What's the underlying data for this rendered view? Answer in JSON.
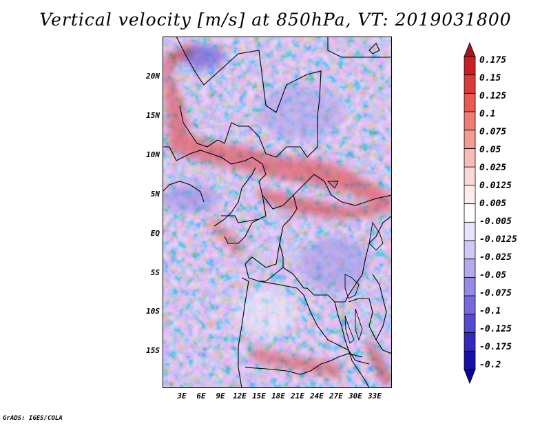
{
  "title": "Vertical velocity [m/s] at 850hPa, VT: 2019031800",
  "lat_labels": [
    "20N",
    "15N",
    "10N",
    "5N",
    "EQ",
    "5S",
    "10S",
    "15S"
  ],
  "lon_labels": [
    "3E",
    "6E",
    "9E",
    "12E",
    "15E",
    "18E",
    "21E",
    "24E",
    "27E",
    "30E",
    "33E"
  ],
  "colorbar": {
    "labels": [
      "0.175",
      "0.15",
      "0.125",
      "0.1",
      "0.075",
      "0.05",
      "0.025",
      "0.0125",
      "0.005",
      "-0.005",
      "-0.0125",
      "-0.025",
      "-0.05",
      "-0.075",
      "-0.1",
      "-0.125",
      "-0.175",
      "-0.2"
    ],
    "colors": [
      "#a8141a",
      "#c62025",
      "#d93b38",
      "#e85a52",
      "#ef7b72",
      "#f49b94",
      "#f8bdb8",
      "#fbd9d6",
      "#fdeeec",
      "#ffffff",
      "#e7e4fb",
      "#cfc9f5",
      "#b3abee",
      "#958be6",
      "#776bdc",
      "#564bd0",
      "#3429bf",
      "#1a10a8",
      "#0a0590"
    ]
  },
  "footer": "GrADS: IGES/COLA"
}
